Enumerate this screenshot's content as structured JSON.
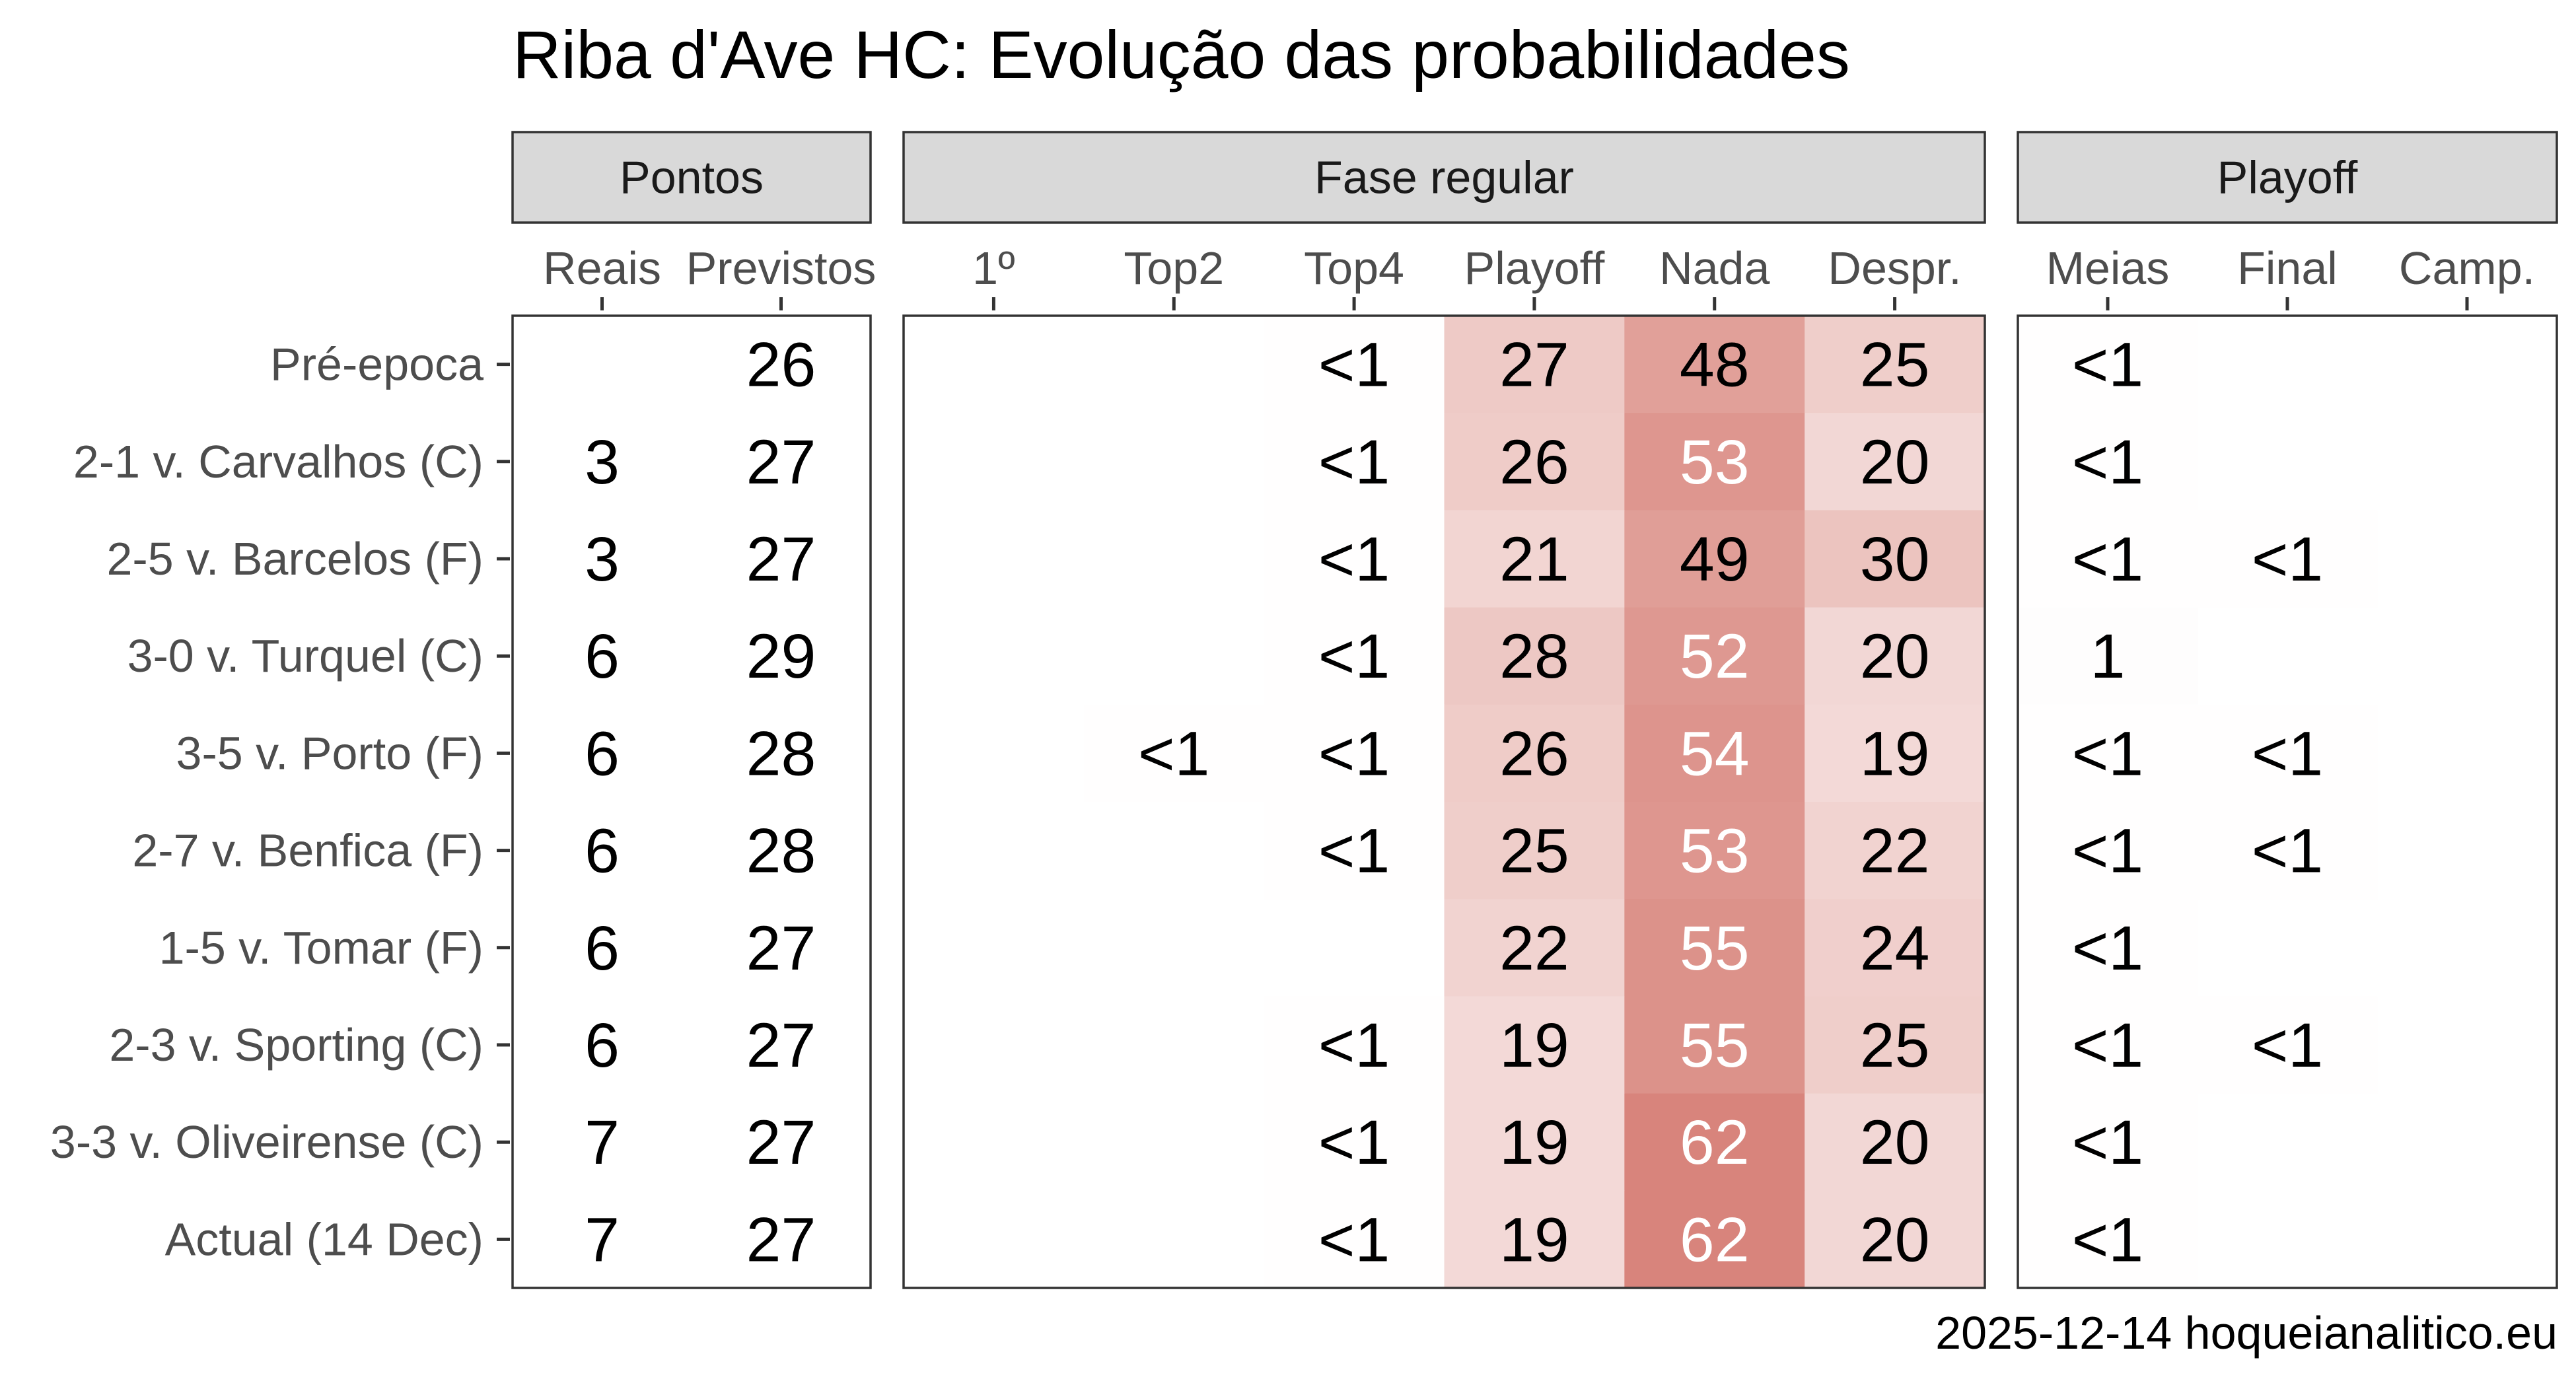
{
  "chart_data": {
    "type": "heatmap",
    "title": "Riba d'Ave HC: Evolução das probabilidades",
    "caption": "2025-12-14 hoqueianalitico.eu",
    "rows": [
      "Pré-epoca",
      "2-1 v. Carvalhos (C)",
      "2-5 v. Barcelos (F)",
      "3-0 v. Turquel (C)",
      "3-5 v. Porto (F)",
      "2-7 v. Benfica (F)",
      "1-5 v. Tomar (F)",
      "2-3 v. Sporting (C)",
      "3-3 v. Oliveirense (C)",
      "Actual (14 Dec)"
    ],
    "panels": [
      {
        "name": "Pontos",
        "shaded": false,
        "columns": [
          "Reais",
          "Previstos"
        ],
        "values": [
          [
            null,
            26
          ],
          [
            3,
            27
          ],
          [
            3,
            27
          ],
          [
            6,
            29
          ],
          [
            6,
            28
          ],
          [
            6,
            28
          ],
          [
            6,
            27
          ],
          [
            6,
            27
          ],
          [
            7,
            27
          ],
          [
            7,
            27
          ]
        ]
      },
      {
        "name": "Fase regular",
        "shaded": true,
        "columns": [
          "1º",
          "Top2",
          "Top4",
          "Playoff",
          "Nada",
          "Despr."
        ],
        "values": [
          [
            null,
            null,
            "<1",
            27,
            48,
            25
          ],
          [
            null,
            null,
            "<1",
            26,
            53,
            20
          ],
          [
            null,
            null,
            "<1",
            21,
            49,
            30
          ],
          [
            null,
            null,
            "<1",
            28,
            52,
            20
          ],
          [
            null,
            "<1",
            "<1",
            26,
            54,
            19
          ],
          [
            null,
            null,
            "<1",
            25,
            53,
            22
          ],
          [
            null,
            null,
            null,
            22,
            55,
            24
          ],
          [
            null,
            null,
            "<1",
            19,
            55,
            25
          ],
          [
            null,
            null,
            "<1",
            19,
            62,
            20
          ],
          [
            null,
            null,
            "<1",
            19,
            62,
            20
          ]
        ]
      },
      {
        "name": "Playoff",
        "shaded": true,
        "columns": [
          "Meias",
          "Final",
          "Camp."
        ],
        "values": [
          [
            "<1",
            null,
            null
          ],
          [
            "<1",
            null,
            null
          ],
          [
            "<1",
            "<1",
            null
          ],
          [
            1,
            null,
            null
          ],
          [
            "<1",
            "<1",
            null
          ],
          [
            "<1",
            "<1",
            null
          ],
          [
            "<1",
            null,
            null
          ],
          [
            "<1",
            "<1",
            null
          ],
          [
            "<1",
            null,
            null
          ],
          [
            "<1",
            null,
            null
          ]
        ]
      }
    ],
    "color_scale": {
      "low": "#ffffff",
      "high": "#c0392b",
      "max_value": 100
    },
    "light_text_threshold": 50,
    "colors": {
      "dark_text": "#000000",
      "light_text": "#ffffff",
      "strip_fill": "#d9d9d9"
    }
  }
}
